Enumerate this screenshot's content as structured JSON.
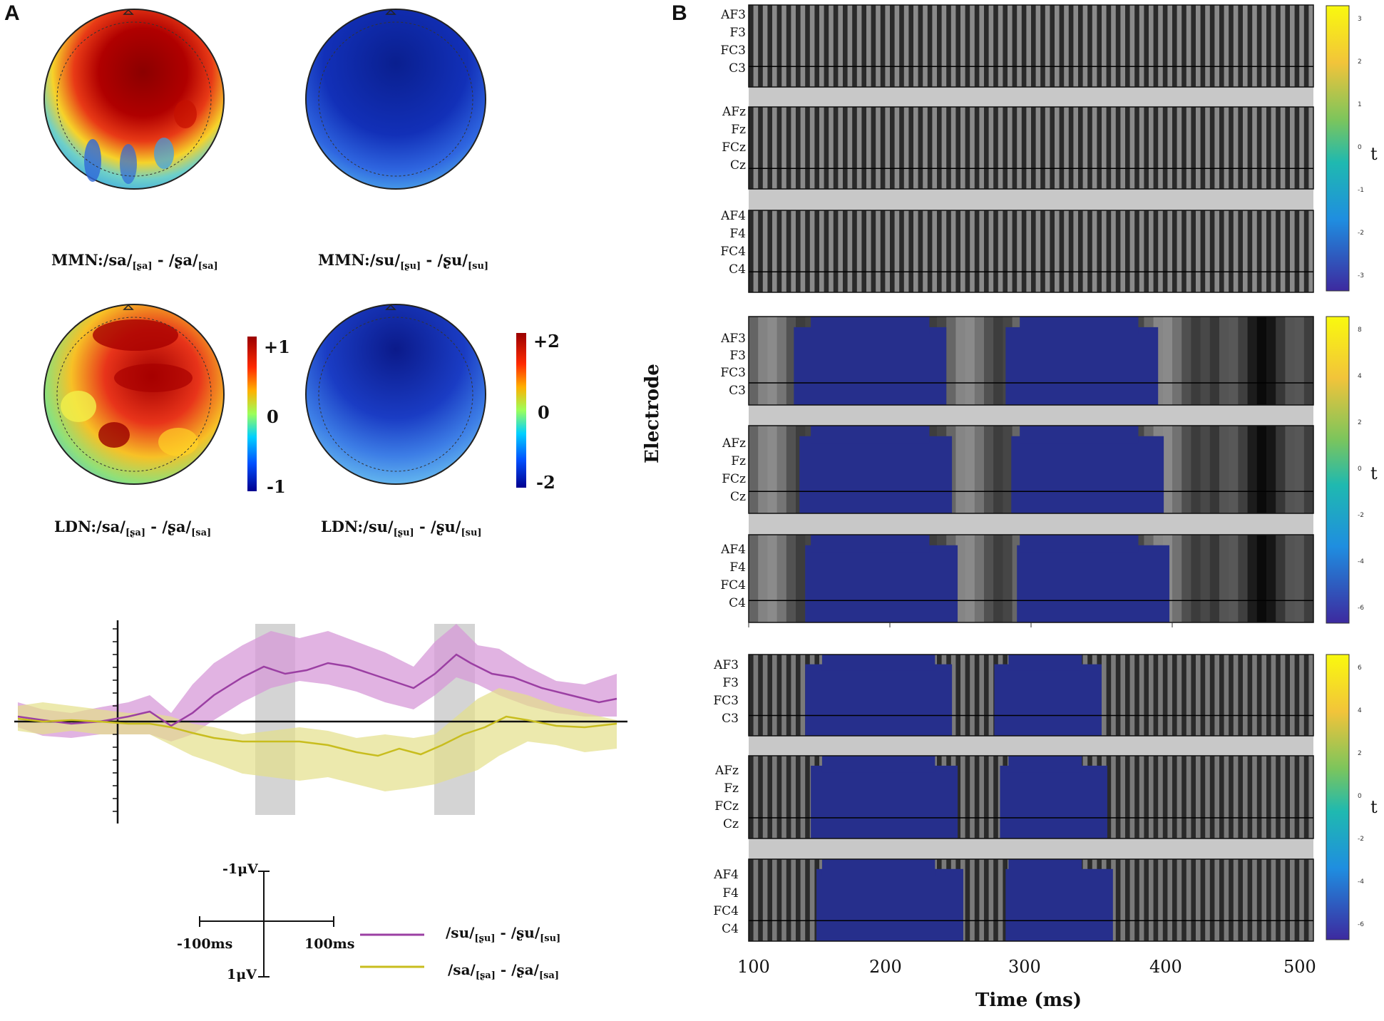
{
  "panels": {
    "a": "A",
    "b": "B"
  },
  "topomaps": [
    {
      "prefix": "MMN:/sa/",
      "sub1": "[ʂa]",
      "mid": " - /ʂa/",
      "sub2": "[sa]"
    },
    {
      "prefix": "MMN:/su/",
      "sub1": "[ʂu]",
      "mid": " - /ʂu/",
      "sub2": "[su]"
    },
    {
      "prefix": "LDN:/sa/",
      "sub1": "[ʂa]",
      "mid": " - /ʂa/",
      "sub2": "[sa]"
    },
    {
      "prefix": "LDN:/su/",
      "sub1": "[ʂu]",
      "mid": " - /ʂu/",
      "sub2": "[su]"
    }
  ],
  "colorbar_left": {
    "top": "+1",
    "mid": "0",
    "bottom": "-1"
  },
  "colorbar_right": {
    "top": "+2",
    "mid": "0",
    "bottom": "-2"
  },
  "erp": {
    "scale": {
      "neg": "-1μV",
      "pos": "1μV",
      "left": "-100ms",
      "right": "100ms"
    },
    "legend": [
      {
        "prefix": "/su/",
        "sub1": "[ʂu]",
        "mid": " - /ʂu/",
        "sub2": "[su]",
        "color": "#9b3fa3"
      },
      {
        "prefix": "/sa/",
        "sub1": "[ʂa]",
        "mid": " - /ʂa/",
        "sub2": "[sa]",
        "color": "#c8bd1e"
      }
    ]
  },
  "heatmap": {
    "ylabel": "Electrode",
    "xlabel": "Time (ms)",
    "x_ticks": [
      "100",
      "200",
      "300",
      "400",
      "500"
    ],
    "groups": [
      [
        "AF3",
        "F3",
        "FC3",
        "C3"
      ],
      [
        "AFz",
        "Fz",
        "FCz",
        "Cz"
      ],
      [
        "AF4",
        "F4",
        "FC4",
        "C4"
      ]
    ],
    "t_label": "t",
    "colorbars": [
      {
        "ticks": [
          "3",
          "2",
          "1",
          "0",
          "-1",
          "-2",
          "-3"
        ]
      },
      {
        "ticks": [
          "8",
          "4",
          "2",
          "0",
          "-2",
          "-4",
          "-6"
        ]
      },
      {
        "ticks": [
          "6",
          "4",
          "2",
          "0",
          "-2",
          "-4",
          "-6"
        ]
      }
    ]
  },
  "colors": {
    "sig_blue": "#262f8c",
    "gray": "#7a7a7a",
    "sep": "#c8c8c8"
  }
}
